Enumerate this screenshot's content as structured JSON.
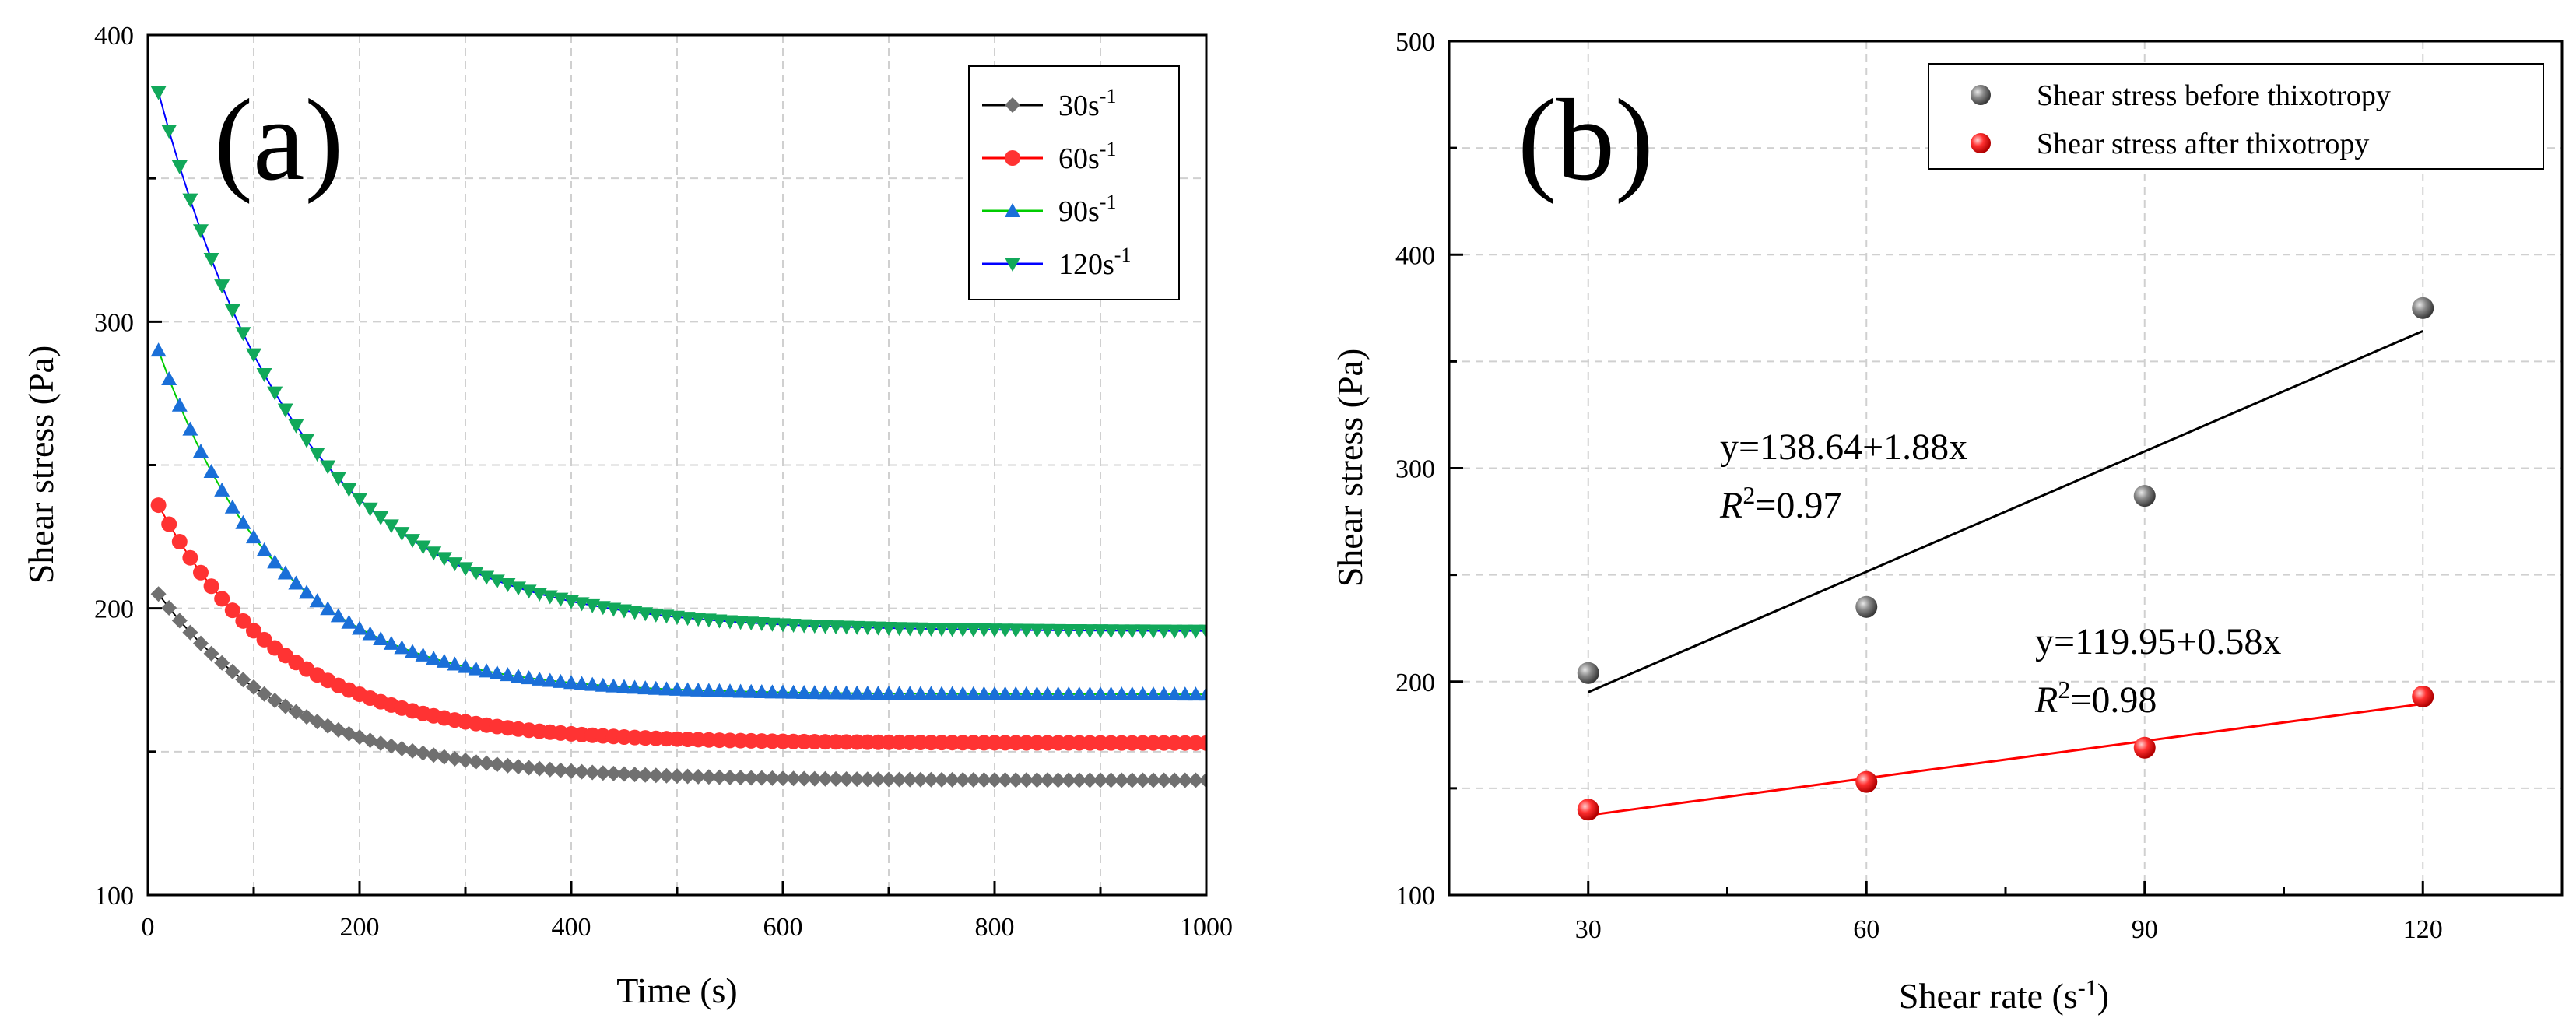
{
  "chart_data": [
    {
      "type": "line",
      "panel_label": "(a)",
      "xlabel": "Time (s)",
      "ylabel": "Shear stress (Pa)",
      "xlim": [
        0,
        1000
      ],
      "ylim": [
        100,
        400
      ],
      "xticks": [
        "0",
        "200",
        "400",
        "600",
        "800",
        "1000"
      ],
      "yticks": [
        "100",
        "200",
        "300",
        "400"
      ],
      "grid": true,
      "legend_position": "top-right",
      "series": [
        {
          "name": "30s",
          "sup": "-1",
          "color": "#707070",
          "line_color": "#000000",
          "marker": "diamond",
          "start": 205,
          "end": 140,
          "tau": 130
        },
        {
          "name": "60s",
          "sup": "-1",
          "color": "#ff3333",
          "line_color": "#ff0000",
          "marker": "circle",
          "start": 236,
          "end": 153,
          "tau": 120
        },
        {
          "name": "90s",
          "sup": "-1",
          "color": "#1a6fd8",
          "line_color": "#00cc00",
          "marker": "triangle-up",
          "start": 290,
          "end": 170,
          "tau": 115
        },
        {
          "name": "120s",
          "sup": "-1",
          "color": "#11a85a",
          "line_color": "#0000ff",
          "marker": "triangle-down",
          "start": 380,
          "end": 192,
          "tau": 135
        }
      ]
    },
    {
      "type": "scatter",
      "panel_label": "(b)",
      "xlabel": "Shear rate (s",
      "xlabel_sup": "-1",
      "xlabel_close": ")",
      "ylabel": "Shear stress (Pa)",
      "xlim": [
        15,
        135
      ],
      "ylim": [
        100,
        500
      ],
      "xticks": [
        30,
        60,
        90,
        120
      ],
      "yticks": [
        100,
        200,
        300,
        400,
        500
      ],
      "grid": true,
      "legend_position": "top-right",
      "series": [
        {
          "name": "Shear stress before thixotropy",
          "color": "#606060",
          "x": [
            30,
            60,
            90,
            120
          ],
          "y": [
            204,
            235,
            287,
            375
          ],
          "fit": {
            "intercept": 138.64,
            "slope": 1.88,
            "equation": "y=138.64+1.88x",
            "r2_label": "R",
            "r2_sup": "2",
            "r2_value": "=0.97"
          }
        },
        {
          "name": "Shear stress after thixotropy",
          "color": "#ff2020",
          "x": [
            30,
            60,
            90,
            120
          ],
          "y": [
            140,
            153,
            169,
            193
          ],
          "fit": {
            "intercept": 119.95,
            "slope": 0.58,
            "equation": "y=119.95+0.58x",
            "r2_label": "R",
            "r2_sup": "2",
            "r2_value": "=0.98"
          }
        }
      ]
    }
  ]
}
